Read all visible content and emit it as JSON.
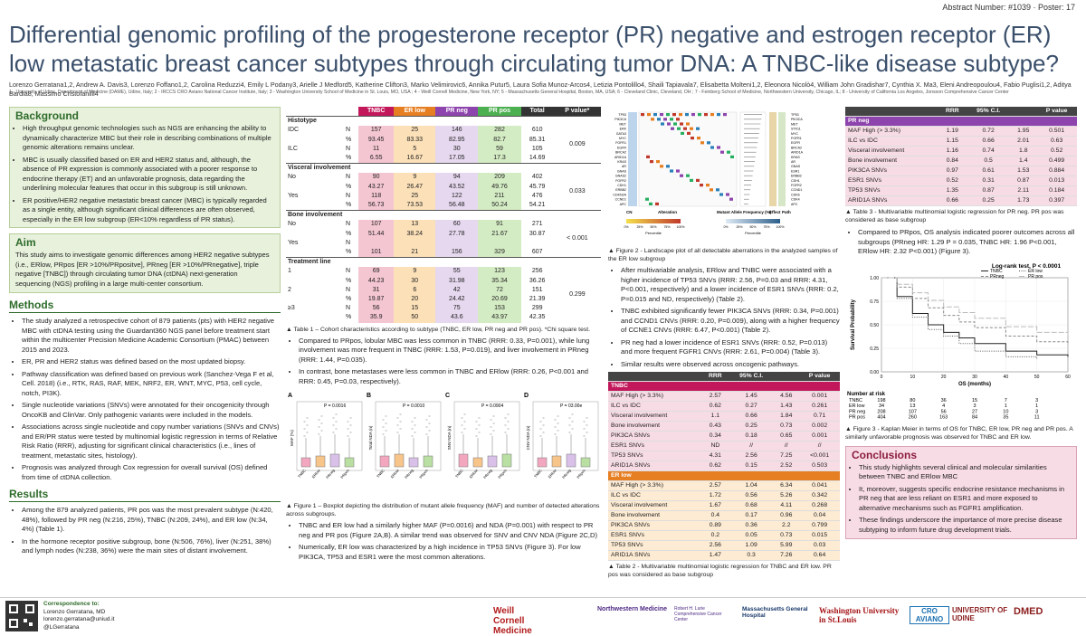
{
  "header": {
    "abstract": "Abstract Number: #1039 · Poster: 17",
    "title": "Differential genomic profiling of the progesterone receptor (PR) negative and estrogen receptor (ER) low metastatic breast cancer subtypes through circulating tumor DNA: A TNBC-like disease subtype?",
    "authors": "Lorenzo Gerratana1,2, Andrew A. Davis3, Lorenzo Foffano1,2, Carolina Reduzzi4, Emily L Podany3, Arielle J Medford5, Katherine Clifton3, Marko Velimirovic6, Annika Putur5, Laura Sofia Munoz-Arcos4, Letizia Pontolillo4, Shaili Tapiavala7, Elisabetta Molteni1,2, Eleonora Nicolò4, William John Gradishar7, Cynthia X. Ma3, Eleni Andreopoulou4, Fabio Puglisi1,2, Aditya Bardia8, Massimo Cristofanilli4",
    "affiliations": "1 - University of Udine, Department of Medicine (DAME), Udine, Italy; 2 - IRCCS CRO Aviano National Cancer Institute, Italy; 3 - Washington University School of Medicine in St. Louis, MO, USA ; 4 - Weill Cornell Medicine, New York, NY; 5 - Massachusetts General Hospital, Boston, MA, USA; 6 - Cleveland Clinic, Cleveland, OH ; 7 - Feinberg School of Medicine, Northwestern University, Chicago, IL; 8 - University of California Los Angeles, Jonsson Comprehensive Cancer Center"
  },
  "background": {
    "heading": "Background",
    "items": [
      "High throughput genomic technologies such as NGS are enhancing the ability to dynamically characterize MBC but their role in describing combinations of multiple genomic alterations remains unclear.",
      "MBC is usually classified based on ER and HER2 status and, although, the absence of PR expression is commonly associated with a poorer response to endocrine therapy (ET) and an unfavorable prognosis, data regarding the underlining molecular features that occur in this subgroup is still unknown.",
      "ER positive/HER2 negative metastatic breast cancer (MBC) is typically regarded as a single entity, although significant clinical differences are often observed, especially in the ER low subgroup (ER<10% regardless of PR status)."
    ]
  },
  "aim": {
    "heading": "Aim",
    "text": "This study aims to investigate genomic differences among HER2 negative subtypes (i.e., ERlow, PRpos [ER >10%/PRpositve], PRneg [ER >10%/PRnegative], triple negative [TNBC]) through circulating tumor DNA (ctDNA) next-generation sequencing (NGS) profiling in a large multi-center consortium."
  },
  "methods": {
    "heading": "Methods",
    "items": [
      "The study analyzed a retrospective cohort of 879 patients (pts) with HER2 negative MBC with ctDNA testing using the Guardant360 NGS panel before treatment start within the multicenter Precision Medicine Academic Consortium (PMAC) between 2015 and 2023.",
      "ER, PR and HER2 status was defined based on the most updated biopsy.",
      "Pathway classification was defined based on previous work (Sanchez-Vega F et al, Cell. 2018) (i.e., RTK, RAS, RAF, MEK, NRF2, ER, WNT, MYC, P53, cell cycle, notch, PI3K).",
      "Single nucleotide variations (SNVs) were annotated for their oncogenicity through OncoKB and ClinVar. Only pathogenic variants were included in the models.",
      "Associations across single nucleotide and copy number variations (SNVs and CNVs) and ER/PR status were tested by multinomial logistic regression in terms of Relative Risk Ratio (RRR), adjusting for significant clinical characteristics (i.e., lines of treatment, metastatic sites, histology).",
      "Prognosis was analyzed through Cox regression for overall survival (OS) defined from time of ctDNA collection."
    ]
  },
  "results": {
    "heading": "Results",
    "items": [
      "Among the 879 analyzed patients, PR pos was the most prevalent subtype (N:420, 48%), followed by PR neg (N:216, 25%), TNBC (N:209, 24%), and ER low (N:34, 4%) (Table 1).",
      "In the hormone receptor positive subgroup, bone (N:506, 76%), liver (N:251, 38%) and lymph nodes (N:238, 36%) were the main sites of distant involvement."
    ]
  },
  "correspondence": {
    "label": "Correspondence to:",
    "name": "Lorenzo Gerratana, MD",
    "email": "lorenzo.gerratana@uniud.it",
    "handle": "@LGerratana"
  },
  "table1": {
    "headers": [
      "",
      "",
      "TNBC",
      "ER low",
      "PR neg",
      "PR pos",
      "Total",
      "P value*"
    ],
    "groups": [
      {
        "name": "Histotype",
        "rows": [
          {
            "label": "IDC",
            "stat": "N",
            "vals": [
              "157",
              "25",
              "146",
              "282",
              "610"
            ],
            "p": "0.009"
          },
          {
            "label": "",
            "stat": "%",
            "vals": [
              "93.45",
              "83.33",
              "82.95",
              "82.7",
              "85.31"
            ],
            "p": ""
          },
          {
            "label": "ILC",
            "stat": "N",
            "vals": [
              "11",
              "5",
              "30",
              "59",
              "105"
            ],
            "p": ""
          },
          {
            "label": "",
            "stat": "%",
            "vals": [
              "6.55",
              "16.67",
              "17.05",
              "17.3",
              "14.69"
            ],
            "p": ""
          }
        ]
      },
      {
        "name": "Visceral involvement",
        "rows": [
          {
            "label": "No",
            "stat": "N",
            "vals": [
              "90",
              "9",
              "94",
              "209",
              "402"
            ],
            "p": "0.033"
          },
          {
            "label": "",
            "stat": "%",
            "vals": [
              "43.27",
              "26.47",
              "43.52",
              "49.76",
              "45.79"
            ],
            "p": ""
          },
          {
            "label": "Yes",
            "stat": "N",
            "vals": [
              "118",
              "25",
              "122",
              "211",
              "476"
            ],
            "p": ""
          },
          {
            "label": "",
            "stat": "%",
            "vals": [
              "56.73",
              "73.53",
              "56.48",
              "50.24",
              "54.21"
            ],
            "p": ""
          }
        ]
      },
      {
        "name": "Bone involvement",
        "rows": [
          {
            "label": "No",
            "stat": "N",
            "vals": [
              "107",
              "13",
              "60",
              "91",
              "271"
            ],
            "p": "< 0.001"
          },
          {
            "label": "",
            "stat": "%",
            "vals": [
              "51.44",
              "38.24",
              "27.78",
              "21.67",
              "30.87"
            ],
            "p": ""
          },
          {
            "label": "Yes",
            "stat": "N",
            "vals": [
              "",
              "",
              "",
              "",
              ""
            ],
            "p": ""
          },
          {
            "label": "",
            "stat": "%",
            "vals": [
              "101",
              "21",
              "156",
              "329",
              "607"
            ],
            "p": ""
          }
        ]
      },
      {
        "name": "Treatment line",
        "rows": [
          {
            "label": "1",
            "stat": "N",
            "vals": [
              "69",
              "9",
              "55",
              "123",
              "256"
            ],
            "p": "0.299"
          },
          {
            "label": "",
            "stat": "%",
            "vals": [
              "44.23",
              "30",
              "31.98",
              "35.34",
              "36.26"
            ],
            "p": ""
          },
          {
            "label": "2",
            "stat": "N",
            "vals": [
              "31",
              "6",
              "42",
              "72",
              "151"
            ],
            "p": ""
          },
          {
            "label": "",
            "stat": "%",
            "vals": [
              "19.87",
              "20",
              "24.42",
              "20.69",
              "21.39"
            ],
            "p": ""
          },
          {
            "label": "≥3",
            "stat": "N",
            "vals": [
              "56",
              "15",
              "75",
              "153",
              "299"
            ],
            "p": ""
          },
          {
            "label": "",
            "stat": "%",
            "vals": [
              "35.9",
              "50",
              "43.6",
              "43.97",
              "42.35"
            ],
            "p": ""
          }
        ]
      }
    ],
    "caption": "▲ Table 1 – Cohort characteristics according to subtype (TNBC, ER low, PR neg and PR pos). *Chi square test."
  },
  "mid_bullets": [
    "Compared to PRpos, lobular MBC was less common in TNBC (RRR: 0.33, P=0.001), while lung involvement was more frequent in TNBC (RRR: 1.53, P=0.019), and liver involvement in PRneg (RRR: 1.44, P=0.035).",
    "In contrast, bone metastases were less common in TNBC and ERlow (RRR: 0.26, P<0.001 and RRR: 0.45, P=0.03, respectively)."
  ],
  "boxplots": {
    "panels": [
      {
        "letter": "A",
        "ylabel": "MAF (%)",
        "p": "P = 0.0016"
      },
      {
        "letter": "B",
        "ylabel": "Total NDA (n)",
        "p": "P = 0.0010"
      },
      {
        "letter": "C",
        "ylabel": "SNV NDA (n)",
        "p": "P = 0.0904"
      },
      {
        "letter": "D",
        "ylabel": "CNV NDA (n)",
        "p": "P = 03.00e"
      }
    ],
    "groups": [
      "TNBC",
      "ERlow",
      "PRneg",
      "PRpos"
    ],
    "colors": [
      "#f2a7be",
      "#f7c48a",
      "#d8c0e8",
      "#b9dfa2"
    ],
    "caption": "▲ Figure 1 – Boxplot depicting the distribution of mutant allele frequency (MAF) and number of detected alterations across subgroups."
  },
  "mid_bullets2": [
    "TNBC and ER low had a similarly higher MAF (P=0.0016) and NDA (P=0.001) with respect to PR neg and PR pos (Figure 2A,B). A similar trend was observed for SNV and CNV NDA (Figure 2C,D)",
    "Numerically, ER low was characterized by a high incidence in TP53 SNVs (Figure 3). For low PIK3CA, TP53 and ESR1 were the most common alterations."
  ],
  "landscape": {
    "genes_left": [
      "TP53",
      "PIK3CA",
      "MET",
      "ERK",
      "GATA3",
      "MYC",
      "FGFR1",
      "EGFR",
      "BRCA2",
      "ARID1A",
      "KRAS",
      "AR",
      "GNAS",
      "GNAS2",
      "FGFR2",
      "CDH1",
      "ERBB2",
      "CDKN2A",
      "CCND1",
      "APC"
    ],
    "genes_right": [
      "TP53",
      "PIK3CA",
      "MET",
      "STK11",
      "MYC",
      "FGFR1",
      "EGFR",
      "BRCA2",
      "ARID1A",
      "KRAS",
      "AR",
      "GNAS",
      "ESR1",
      "ERBB2",
      "CDH1",
      "FGFR2",
      "CCND1",
      "CDK6",
      "CDK4",
      "APC"
    ],
    "bottom_labels": [
      "CN",
      "Alteration",
      "Mutant Allele Frequency (%)",
      "Effect",
      "Path"
    ],
    "ticks": [
      "0%",
      "25%",
      "50%",
      "75%",
      "100%"
    ],
    "percentile": "Percentile",
    "caption": "▲ Figure 2 - Landscape plot of all detectable aberrations in the analyzed samples of the ER low subgroup"
  },
  "center_bullets": [
    "After multivariable analysis, ERlow and TNBC were associated with a higher incidence of TP53 SNVs (RRR: 2.56, P=0.03 and RRR: 4.31, P<0.001, respectively) and a lower incidence of ESR1 SNVs (RRR: 0.2, P=0.015 and ND, respectively) (Table 2).",
    "TNBC exhibited significantly fewer PIK3CA SNVs (RRR: 0.34, P=0.001) and CCND1 CNVs (RRR: 0.20, P=0.009), along with a higher frequency of CCNE1 CNVs (RRR: 6.47, P<0.001) (Table 2).",
    "PR neg had a lower incidence of ESR1 SNVs (RRR: 0.52, P=0.013) and more frequent FGFR1 CNVs (RRR: 2.61, P=0.004) (Table 3).",
    "Similar results were observed across oncogenic pathways."
  ],
  "table2": {
    "headers": [
      "",
      "RRR",
      "95% C.I.",
      "",
      "P value"
    ],
    "tnbc_label": "TNBC",
    "tnbc": [
      [
        "MAF High (> 3.3%)",
        "2.57",
        "1.45",
        "4.56",
        "0.001"
      ],
      [
        "ILC vs IDC",
        "0.62",
        "0.27",
        "1.43",
        "0.261"
      ],
      [
        "Visceral involvement",
        "1.1",
        "0.66",
        "1.84",
        "0.71"
      ],
      [
        "Bone involvement",
        "0.43",
        "0.25",
        "0.73",
        "0.002"
      ],
      [
        "PIK3CA SNVs",
        "0.34",
        "0.18",
        "0.65",
        "0.001"
      ],
      [
        "ESR1 SNVs",
        "ND",
        "//",
        "//",
        "//"
      ],
      [
        "TP53 SNVs",
        "4.31",
        "2.56",
        "7.25",
        "<0.001"
      ],
      [
        "ARID1A SNVs",
        "0.62",
        "0.15",
        "2.52",
        "0.503"
      ]
    ],
    "erlow_label": "ER low",
    "erlow": [
      [
        "MAF High (> 3.3%)",
        "2.57",
        "1.04",
        "6.34",
        "0.041"
      ],
      [
        "ILC vs IDC",
        "1.72",
        "0.56",
        "5.26",
        "0.342"
      ],
      [
        "Visceral involvement",
        "1.67",
        "0.68",
        "4.11",
        "0.268"
      ],
      [
        "Bone involvement",
        "0.4",
        "0.17",
        "0.96",
        "0.04"
      ],
      [
        "PIK3CA SNVs",
        "0.89",
        "0.36",
        "2.2",
        "0.799"
      ],
      [
        "ESR1 SNVs",
        "0.2",
        "0.05",
        "0.73",
        "0.015"
      ],
      [
        "TP53 SNVs",
        "2.56",
        "1.09",
        "5.99",
        "0.03"
      ],
      [
        "ARID1A SNVs",
        "1.47",
        "0.3",
        "7.26",
        "0.64"
      ]
    ],
    "caption": "▲ Table 2 - Multivariable multinomial logistic regression for TNBC and ER low. PR pos was considered as base subgroup"
  },
  "table3": {
    "headers": [
      "",
      "RRR",
      "95% C.I.",
      "",
      "P value"
    ],
    "label": "PR neg",
    "rows": [
      [
        "MAF High (> 3.3%)",
        "1.19",
        "0.72",
        "1.95",
        "0.501"
      ],
      [
        "ILC vs IDC",
        "1.15",
        "0.66",
        "2.01",
        "0.63"
      ],
      [
        "Visceral involvement",
        "1.16",
        "0.74",
        "1.8",
        "0.52"
      ],
      [
        "Bone involvement",
        "0.84",
        "0.5",
        "1.4",
        "0.499"
      ],
      [
        "PIK3CA SNVs",
        "0.97",
        "0.61",
        "1.53",
        "0.884"
      ],
      [
        "ESR1 SNVs",
        "0.52",
        "0.31",
        "0.87",
        "0.013"
      ],
      [
        "TP53 SNVs",
        "1.35",
        "0.87",
        "2.11",
        "0.184"
      ],
      [
        "ARID1A SNVs",
        "0.66",
        "0.25",
        "1.73",
        "0.397"
      ]
    ],
    "caption": "▲ Table 3 - Multivariable multinomial logistic regression for PR neg. PR pos was considered as base subgroup"
  },
  "right_bullet": "Compared to PRpos, OS analysis indicated poorer outcomes across all subgroups (PRneg HR: 1.29 P = 0.035, TNBC HR: 1.96 P<0.001, ERlow HR: 2.32 P<0.001) (Figure 3).",
  "chart_data": {
    "type": "line",
    "title": "Log-rank test, P < 0.0001",
    "xlabel": "OS (months)",
    "ylabel": "Survival Probability",
    "xlim": [
      0,
      60
    ],
    "ylim": [
      0,
      1
    ],
    "xticks": [
      0,
      10,
      20,
      30,
      40,
      50,
      60
    ],
    "yticks": [
      0,
      0.25,
      0.5,
      0.75,
      1.0
    ],
    "legend_position": "top-right",
    "series": [
      {
        "name": "TNBC",
        "color": "#222222",
        "dash": "solid",
        "x": [
          0,
          5,
          10,
          15,
          20,
          25,
          30,
          40,
          50,
          60
        ],
        "y": [
          1.0,
          0.8,
          0.62,
          0.5,
          0.42,
          0.36,
          0.3,
          0.22,
          0.18,
          0.16
        ]
      },
      {
        "name": "ER low",
        "color": "#555555",
        "dash": "dotted",
        "x": [
          0,
          5,
          10,
          15,
          20,
          25,
          30,
          40,
          50
        ],
        "y": [
          1.0,
          0.78,
          0.58,
          0.45,
          0.38,
          0.3,
          0.22,
          0.16,
          0.14
        ]
      },
      {
        "name": "PRneg",
        "color": "#888888",
        "dash": "dashed",
        "x": [
          0,
          5,
          10,
          15,
          20,
          25,
          30,
          40,
          50,
          60
        ],
        "y": [
          1.0,
          0.9,
          0.78,
          0.68,
          0.6,
          0.53,
          0.47,
          0.38,
          0.32,
          0.3
        ]
      },
      {
        "name": "PR pos",
        "color": "#bbbbbb",
        "dash": "longdash",
        "x": [
          0,
          5,
          10,
          15,
          20,
          25,
          30,
          40,
          50,
          60
        ],
        "y": [
          1.0,
          0.93,
          0.84,
          0.76,
          0.69,
          0.63,
          0.57,
          0.48,
          0.42,
          0.38
        ]
      }
    ],
    "risk_table": {
      "label": "Number at risk",
      "rows": [
        {
          "name": "TNBC",
          "vals": [
            "198",
            "80",
            "36",
            "15",
            "7",
            "3"
          ]
        },
        {
          "name": "ER low",
          "vals": [
            "34",
            "13",
            "4",
            "3",
            "1",
            "1"
          ]
        },
        {
          "name": "PR neg",
          "vals": [
            "208",
            "107",
            "56",
            "27",
            "10",
            "3"
          ]
        },
        {
          "name": "PR pos",
          "vals": [
            "404",
            "260",
            "163",
            "84",
            "35",
            "11"
          ]
        }
      ]
    },
    "caption": "▲ Figure 3 - Kaplan Meier in terms of OS for TNBC, ER low, PR neg and PR pos. A similarly unfavorable prognosis was observed for TNBC and ER low."
  },
  "conclusions": {
    "heading": "Conclusions",
    "items": [
      "This study highlights several clinical and molecular similarities between TNBC and ERlow MBC",
      "It, moreover, suggests specific endocrine resistance mechanisms in PR neg that are less reliant on ESR1 and more exposed to alternative mechanisms such as FGFR1 amplification.",
      "These findings underscore the importance of more precise disease subtyping to inform future drug development trials."
    ]
  },
  "logos": [
    "Weill Cornell Medicine",
    "Northwestern Medicine",
    "Robert H. Lurie Comprehensive Cancer Center",
    "Massachusetts General Hospital",
    "Washington University in St.Louis",
    "CRO AVIANO",
    "UNIVERSITY OF UDINE",
    "DMED"
  ]
}
